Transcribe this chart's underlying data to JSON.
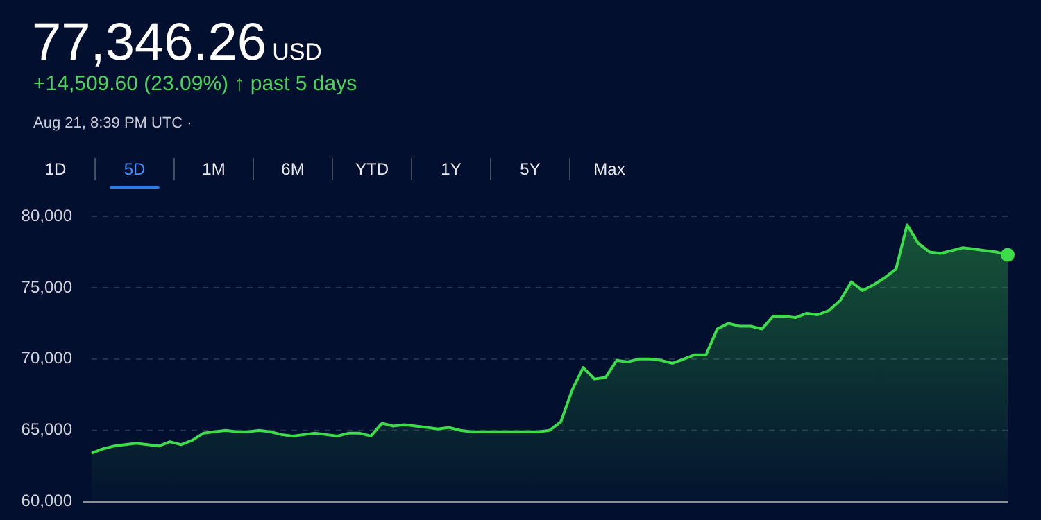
{
  "chart_data": {
    "type": "area",
    "title": "77,346.26",
    "subtitle": "+14,509.60 (23.09%) ↑ past 5 days",
    "annotations": [
      "USD",
      "Aug 21, 8:39 PM UTC ·",
      "1D",
      "5D",
      "1M",
      "6M",
      "YTD",
      "1Y",
      "5Y",
      "Max"
    ],
    "categories": [
      null,
      null,
      null,
      null,
      null,
      null,
      null,
      null,
      null,
      null,
      null,
      null,
      null,
      null,
      null,
      null,
      null,
      null,
      null,
      null,
      null,
      null,
      null,
      null,
      null,
      null,
      null,
      null,
      null,
      null,
      null,
      null,
      null,
      null,
      null,
      null,
      null,
      null,
      null,
      null,
      null,
      null,
      null,
      null,
      null,
      null,
      null,
      null,
      null,
      null,
      null,
      null,
      null,
      null,
      null,
      null,
      null,
      null,
      null,
      null,
      null,
      null,
      null,
      null,
      null,
      null,
      null,
      null,
      null,
      null,
      null,
      null,
      null,
      null,
      null,
      null,
      null,
      null,
      null,
      null,
      null,
      null,
      null
    ],
    "series": [
      {
        "color": "#3ddc4a",
        "values": [
          63400,
          63700,
          63900,
          64000,
          64100,
          64000,
          63900,
          64200,
          64000,
          64300,
          64800,
          64900,
          65000,
          64900,
          64900,
          65000,
          64900,
          64700,
          64600,
          64700,
          64800,
          64700,
          64600,
          64800,
          64800,
          64600,
          65500,
          65300,
          65400,
          65300,
          65200,
          65100,
          65200,
          65000,
          64900,
          64900,
          64900,
          64900,
          64900,
          64900,
          64900,
          65000,
          65600,
          67800,
          69400,
          68600,
          68700,
          69900,
          69800,
          70000,
          70000,
          69900,
          69700,
          70000,
          70300,
          70300,
          72100,
          72500,
          72300,
          72300,
          72100,
          73000,
          73000,
          72900,
          73200,
          73100,
          73400,
          74100,
          75400,
          74800,
          75200,
          75700,
          76300,
          79400,
          78100,
          77500,
          77400,
          77600,
          77800,
          77700,
          77600,
          77500,
          77300
        ]
      }
    ],
    "ylim": [
      60000,
      80000
    ],
    "yticks": [
      {
        "value": 60000,
        "label": "60,000"
      },
      {
        "value": 65000,
        "label": "65,000"
      },
      {
        "value": 70000,
        "label": "70,000"
      },
      {
        "value": 75000,
        "label": "75,000"
      },
      {
        "value": 80000,
        "label": "80,000"
      }
    ],
    "grid": "y",
    "legend": false,
    "tick_labels": "y"
  }
}
